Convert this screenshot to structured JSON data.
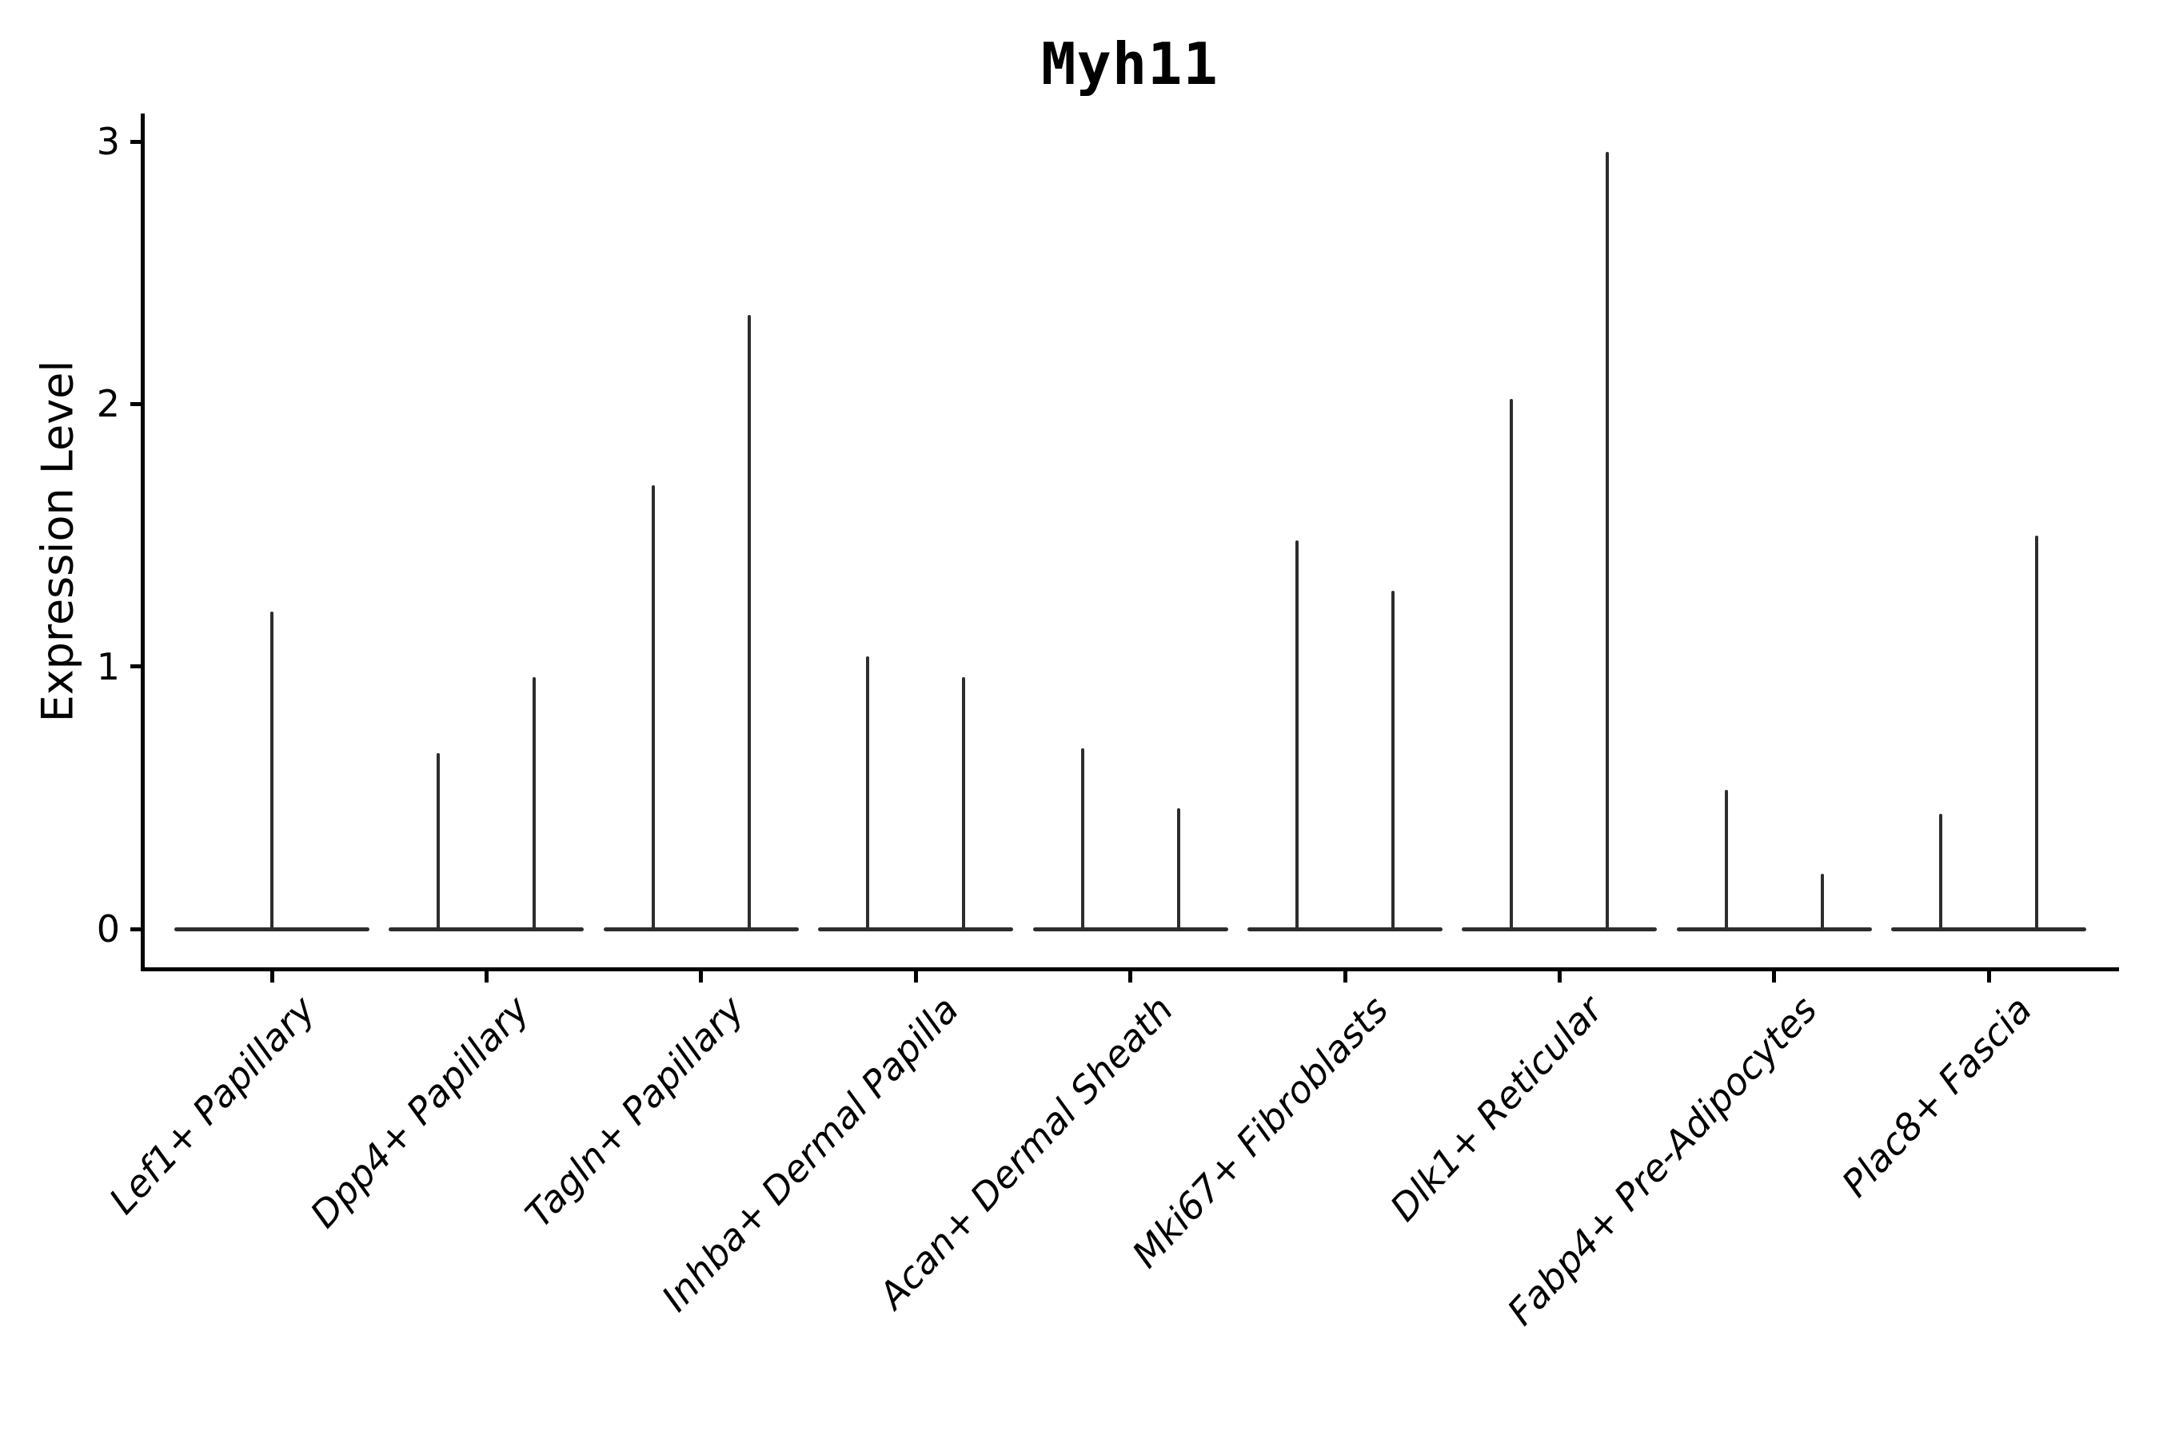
{
  "title": "Myh11",
  "y_axis": {
    "label": "Expression Level",
    "tick_labels": [
      "0",
      "1",
      "2",
      "3"
    ],
    "tick_values": [
      0,
      1,
      2,
      3
    ]
  },
  "colors": {
    "axis": "#000000",
    "violin": "#2d2d2d",
    "background": "#ffffff",
    "text": "#000000"
  },
  "chart_data": {
    "type": "violin",
    "title": "Myh11",
    "xlabel": "",
    "ylabel": "Expression Level",
    "ylim": [
      0,
      3
    ],
    "yticks": [
      0,
      1,
      2,
      3
    ],
    "grid": false,
    "legend": false,
    "categories": [
      "Lef1+ Papillary",
      "Dpp4+ Papillary",
      "Tagln+ Papillary",
      "Inhba+ Dermal Papilla",
      "Acan+ Dermal Sheath",
      "Mki67+ Fibroblasts",
      "Dlk1+ Reticular",
      "Fabp4+ Pre-Adipocytes",
      "Plac8+ Fascia"
    ],
    "description": "Each cluster shows a flat violin at expression 0 with thin vertical spikes reaching the maximum expression of rare positive cells.",
    "violins": [
      {
        "category": "Lef1+ Papillary",
        "spikes": [
          {
            "offset": 0,
            "max": 1.21
          }
        ]
      },
      {
        "category": "Dpp4+ Papillary",
        "spikes": [
          {
            "offset": -60,
            "max": 0.67
          },
          {
            "offset": 60,
            "max": 0.96
          }
        ]
      },
      {
        "category": "Tagln+ Papillary",
        "spikes": [
          {
            "offset": -60,
            "max": 1.69
          },
          {
            "offset": 60,
            "max": 2.34
          }
        ]
      },
      {
        "category": "Inhba+ Dermal Papilla",
        "spikes": [
          {
            "offset": -60,
            "max": 1.04
          },
          {
            "offset": 60,
            "max": 0.96
          }
        ]
      },
      {
        "category": "Acan+ Dermal Sheath",
        "spikes": [
          {
            "offset": -60,
            "max": 0.69
          },
          {
            "offset": 60,
            "max": 0.46
          }
        ]
      },
      {
        "category": "Mki67+ Fibroblasts",
        "spikes": [
          {
            "offset": -60,
            "max": 1.48
          },
          {
            "offset": 60,
            "max": 1.29
          }
        ]
      },
      {
        "category": "Dlk1+ Reticular",
        "spikes": [
          {
            "offset": -60,
            "max": 2.02
          },
          {
            "offset": 60,
            "max": 2.96
          }
        ]
      },
      {
        "category": "Fabp4+ Pre-Adipocytes",
        "spikes": [
          {
            "offset": -60,
            "max": 0.53
          },
          {
            "offset": 60,
            "max": 0.21
          }
        ]
      },
      {
        "category": "Plac8+ Fascia",
        "spikes": [
          {
            "offset": -60,
            "max": 0.44
          },
          {
            "offset": 60,
            "max": 1.5
          }
        ]
      }
    ]
  }
}
